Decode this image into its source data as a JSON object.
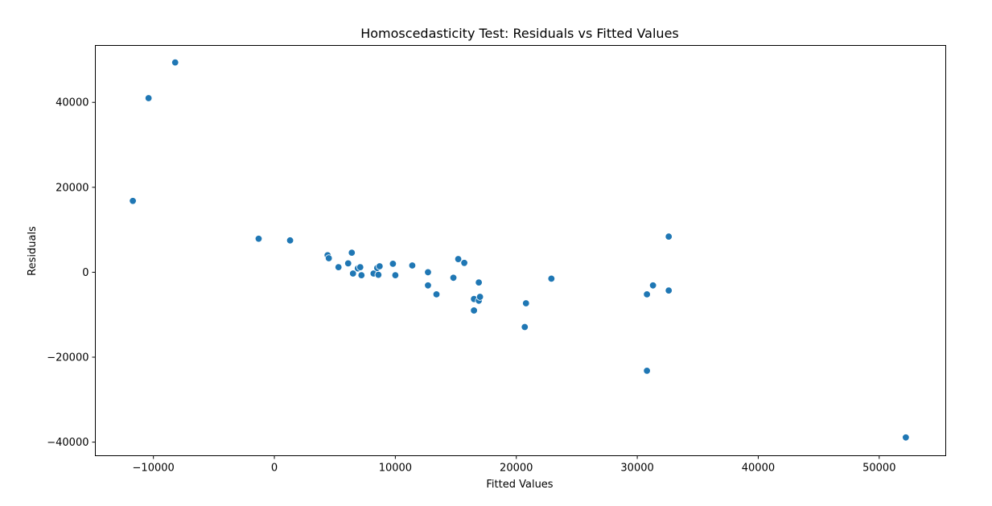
{
  "chart_data": {
    "type": "scatter",
    "title": "Homoscedasticity Test: Residuals vs Fitted Values",
    "xlabel": "Fitted Values",
    "ylabel": "Residuals",
    "xlim": [
      -14800,
      55500
    ],
    "ylim": [
      -43200,
      53400
    ],
    "xticks": [
      -10000,
      0,
      10000,
      20000,
      30000,
      40000,
      50000
    ],
    "xtick_labels": [
      "−10000",
      "0",
      "10000",
      "20000",
      "30000",
      "40000",
      "50000"
    ],
    "yticks": [
      -40000,
      -20000,
      0,
      20000,
      40000
    ],
    "yticks_labels": [
      "−40000",
      "−20000",
      "0",
      "20000",
      "40000"
    ],
    "grid": false,
    "marker_color": "#1f77b4",
    "points": [
      {
        "x": -11700,
        "y": 16800
      },
      {
        "x": -10400,
        "y": 41000
      },
      {
        "x": -8200,
        "y": 49400
      },
      {
        "x": -1300,
        "y": 7900
      },
      {
        "x": 1300,
        "y": 7500
      },
      {
        "x": 4400,
        "y": 4000
      },
      {
        "x": 4500,
        "y": 3300
      },
      {
        "x": 5300,
        "y": 1200
      },
      {
        "x": 6100,
        "y": 2100
      },
      {
        "x": 6400,
        "y": 4600
      },
      {
        "x": 6500,
        "y": -300
      },
      {
        "x": 6900,
        "y": 900
      },
      {
        "x": 7100,
        "y": 1200
      },
      {
        "x": 7200,
        "y": -700
      },
      {
        "x": 8200,
        "y": -300
      },
      {
        "x": 8500,
        "y": 1000
      },
      {
        "x": 8600,
        "y": -600
      },
      {
        "x": 8700,
        "y": 1400
      },
      {
        "x": 9800,
        "y": 2000
      },
      {
        "x": 10000,
        "y": -700
      },
      {
        "x": 11400,
        "y": 1600
      },
      {
        "x": 12700,
        "y": 0
      },
      {
        "x": 12700,
        "y": -3100
      },
      {
        "x": 13400,
        "y": -5200
      },
      {
        "x": 14800,
        "y": -1300
      },
      {
        "x": 15200,
        "y": 3100
      },
      {
        "x": 15700,
        "y": 2200
      },
      {
        "x": 16500,
        "y": -6300
      },
      {
        "x": 16500,
        "y": -9000
      },
      {
        "x": 16900,
        "y": -2400
      },
      {
        "x": 16900,
        "y": -6700
      },
      {
        "x": 17000,
        "y": -5800
      },
      {
        "x": 20700,
        "y": -12900
      },
      {
        "x": 20800,
        "y": -7300
      },
      {
        "x": 22900,
        "y": -1500
      },
      {
        "x": 30800,
        "y": -5200
      },
      {
        "x": 30800,
        "y": -23200
      },
      {
        "x": 31300,
        "y": -3100
      },
      {
        "x": 32600,
        "y": 8400
      },
      {
        "x": 32600,
        "y": -4300
      },
      {
        "x": 52200,
        "y": -38900
      }
    ]
  }
}
